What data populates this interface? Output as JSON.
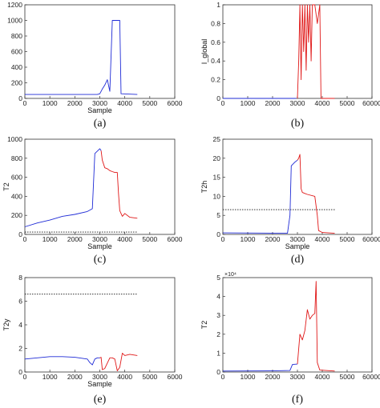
{
  "figure": {
    "panels": [
      {
        "caption": "(a)",
        "chart_data": {
          "type": "line",
          "xlabel": "Sample",
          "ylabel": "",
          "xlim": [
            0,
            6000
          ],
          "ylim": [
            0,
            1200
          ],
          "xticks": [
            0,
            1000,
            2000,
            3000,
            4000,
            5000,
            6000
          ],
          "yticks": [
            0,
            200,
            400,
            600,
            800,
            1000,
            1200
          ],
          "series": [
            {
              "color": "#1f2bd6",
              "points": [
                [
                  0,
                  50
                ],
                [
                  2900,
                  50
                ],
                [
                  3000,
                  60
                ],
                [
                  3100,
                  120
                ],
                [
                  3200,
                  170
                ],
                [
                  3300,
                  240
                ],
                [
                  3400,
                  90
                ],
                [
                  3500,
                  1000
                ],
                [
                  3800,
                  1000
                ],
                [
                  3850,
                  60
                ],
                [
                  4500,
                  50
                ]
              ]
            }
          ]
        }
      },
      {
        "caption": "(b)",
        "chart_data": {
          "type": "line",
          "xlabel": "",
          "ylabel": "I_global",
          "xlim": [
            0,
            60000
          ],
          "ylim": [
            0,
            1
          ],
          "xticks": [
            0,
            1000,
            2000,
            3000,
            4000,
            5000,
            60000
          ],
          "yticks": [
            0,
            0.2,
            0.4,
            0.6,
            0.8,
            1
          ],
          "series": [
            {
              "color": "#1f2bd6",
              "points": [
                [
                  0,
                  0
                ],
                [
                  2950,
                  0
                ]
              ]
            },
            {
              "color": "#e01818",
              "points": [
                [
                  3000,
                  0
                ],
                [
                  3050,
                  0.4
                ],
                [
                  3100,
                  1
                ],
                [
                  3150,
                  0.2
                ],
                [
                  3200,
                  1
                ],
                [
                  3250,
                  0.5
                ],
                [
                  3300,
                  1
                ],
                [
                  3350,
                  0.3
                ],
                [
                  3400,
                  1
                ],
                [
                  3450,
                  0.6
                ],
                [
                  3500,
                  1
                ],
                [
                  3550,
                  0.4
                ],
                [
                  3600,
                  1
                ],
                [
                  3700,
                  1
                ],
                [
                  3800,
                  0.8
                ],
                [
                  3900,
                  1
                ],
                [
                  3950,
                  0
                ],
                [
                  4500,
                  0
                ]
              ]
            }
          ]
        }
      },
      {
        "caption": "(c)",
        "chart_data": {
          "type": "line",
          "xlabel": "Sample",
          "ylabel": "T2",
          "xlim": [
            0,
            6000
          ],
          "ylim": [
            0,
            1000
          ],
          "xticks": [
            0,
            1000,
            2000,
            3000,
            4000,
            5000,
            6000
          ],
          "yticks": [
            0,
            200,
            400,
            600,
            800,
            1000
          ],
          "threshold": 25,
          "series": [
            {
              "color": "#1f2bd6",
              "points": [
                [
                  0,
                  80
                ],
                [
                  500,
                  120
                ],
                [
                  1000,
                  150
                ],
                [
                  1500,
                  190
                ],
                [
                  2000,
                  210
                ],
                [
                  2500,
                  240
                ],
                [
                  2700,
                  270
                ],
                [
                  2800,
                  850
                ],
                [
                  3000,
                  900
                ],
                [
                  3050,
                  880
                ]
              ]
            },
            {
              "color": "#e01818",
              "points": [
                [
                  3050,
                  880
                ],
                [
                  3100,
                  780
                ],
                [
                  3200,
                  700
                ],
                [
                  3300,
                  690
                ],
                [
                  3400,
                  670
                ],
                [
                  3500,
                  660
                ],
                [
                  3600,
                  650
                ],
                [
                  3700,
                  650
                ],
                [
                  3750,
                  420
                ],
                [
                  3800,
                  250
                ],
                [
                  3900,
                  190
                ],
                [
                  4000,
                  220
                ],
                [
                  4200,
                  180
                ],
                [
                  4500,
                  170
                ]
              ]
            }
          ]
        }
      },
      {
        "caption": "(d)",
        "chart_data": {
          "type": "line",
          "xlabel": "Sample",
          "ylabel": "T2h",
          "xlim": [
            0,
            60000
          ],
          "ylim": [
            0,
            25
          ],
          "xticks": [
            0,
            1000,
            2000,
            3000,
            4000,
            5000,
            60000
          ],
          "yticks": [
            0,
            5,
            10,
            15,
            20,
            25
          ],
          "threshold": 6.5,
          "series": [
            {
              "color": "#1f2bd6",
              "points": [
                [
                  0,
                  0.4
                ],
                [
                  2600,
                  0.3
                ],
                [
                  2700,
                  5
                ],
                [
                  2750,
                  18
                ],
                [
                  2900,
                  19
                ],
                [
                  3000,
                  19.5
                ]
              ]
            },
            {
              "color": "#e01818",
              "points": [
                [
                  3000,
                  19.5
                ],
                [
                  3050,
                  20
                ],
                [
                  3100,
                  21
                ],
                [
                  3150,
                  12
                ],
                [
                  3200,
                  11
                ],
                [
                  3400,
                  10.5
                ],
                [
                  3700,
                  10
                ],
                [
                  3800,
                  5
                ],
                [
                  3850,
                  1
                ],
                [
                  4000,
                  0.5
                ],
                [
                  4500,
                  0.3
                ]
              ]
            }
          ]
        }
      },
      {
        "caption": "(e)",
        "chart_data": {
          "type": "line",
          "xlabel": "Sample",
          "ylabel": "T2y",
          "xlim": [
            0,
            6000
          ],
          "ylim": [
            0,
            8
          ],
          "xticks": [
            0,
            1000,
            2000,
            3000,
            4000,
            5000,
            6000
          ],
          "yticks": [
            0,
            2,
            4,
            6,
            8
          ],
          "threshold": 6.6,
          "series": [
            {
              "color": "#1f2bd6",
              "points": [
                [
                  0,
                  1.1
                ],
                [
                  500,
                  1.2
                ],
                [
                  1000,
                  1.3
                ],
                [
                  1500,
                  1.3
                ],
                [
                  2000,
                  1.25
                ],
                [
                  2500,
                  1.1
                ],
                [
                  2600,
                  0.8
                ],
                [
                  2700,
                  0.6
                ],
                [
                  2800,
                  1.1
                ],
                [
                  2900,
                  1.2
                ],
                [
                  3000,
                  1.2
                ]
              ]
            },
            {
              "color": "#e01818",
              "points": [
                [
                  3000,
                  1.2
                ],
                [
                  3050,
                  1.25
                ],
                [
                  3100,
                  0.2
                ],
                [
                  3200,
                  0.3
                ],
                [
                  3400,
                  1.2
                ],
                [
                  3500,
                  1.2
                ],
                [
                  3600,
                  1.1
                ],
                [
                  3700,
                  0.1
                ],
                [
                  3800,
                  0.4
                ],
                [
                  3900,
                  1.6
                ],
                [
                  4000,
                  1.4
                ],
                [
                  4200,
                  1.5
                ],
                [
                  4500,
                  1.4
                ]
              ]
            }
          ]
        }
      },
      {
        "caption": "(f)",
        "chart_data": {
          "type": "line",
          "xlabel": "",
          "ylabel": "T2",
          "xlim": [
            0,
            60000
          ],
          "ylim": [
            0,
            50000
          ],
          "xticks": [
            0,
            1000,
            2000,
            3000,
            4000,
            5000,
            60000
          ],
          "yticks": [
            0,
            10000,
            20000,
            30000,
            40000,
            50000
          ],
          "yticklabels": [
            "0",
            "1",
            "2",
            "3",
            "4",
            "5"
          ],
          "yexponent": "×10⁴",
          "series": [
            {
              "color": "#1f2bd6",
              "points": [
                [
                  0,
                  500
                ],
                [
                  2000,
                  600
                ],
                [
                  2700,
                  800
                ],
                [
                  2800,
                  4000
                ],
                [
                  3000,
                  4200
                ]
              ]
            },
            {
              "color": "#e01818",
              "points": [
                [
                  3000,
                  4200
                ],
                [
                  3100,
                  20000
                ],
                [
                  3200,
                  17000
                ],
                [
                  3300,
                  22000
                ],
                [
                  3400,
                  33000
                ],
                [
                  3500,
                  28000
                ],
                [
                  3600,
                  30000
                ],
                [
                  3700,
                  31000
                ],
                [
                  3750,
                  48000
                ],
                [
                  3800,
                  5000
                ],
                [
                  3900,
                  1000
                ],
                [
                  4500,
                  500
                ]
              ]
            }
          ]
        }
      }
    ]
  }
}
